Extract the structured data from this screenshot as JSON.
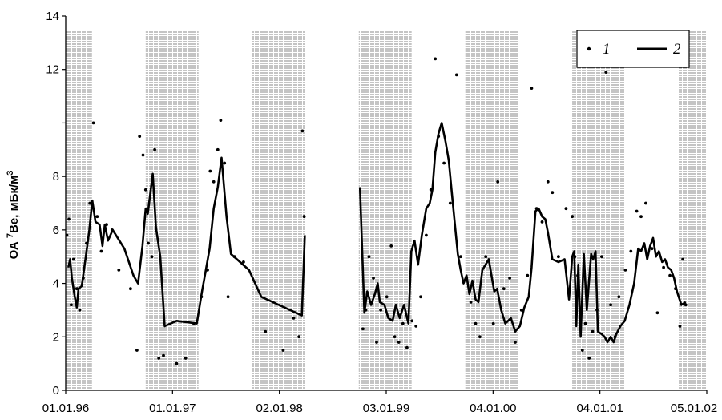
{
  "chart_data": {
    "type": "line",
    "title": "",
    "xlabel": "",
    "ylabel": "ОА ⁷Be, мБк/м³",
    "ylabel_parts": {
      "prefix": "ОА ",
      "superscript": "7",
      "suffix": "Be, мБк/м",
      "unit_power": "3"
    },
    "ylim": [
      0,
      14
    ],
    "y_ticks": [
      0,
      2,
      4,
      6,
      8,
      10,
      12,
      14
    ],
    "y_tick_labels": [
      "0",
      "2",
      "4",
      "6",
      "8",
      "",
      "12",
      "14"
    ],
    "x_ticks": [
      "01.01.96",
      "01.01.97",
      "02.01.98",
      "03.01.99",
      "04.01.00",
      "04.01.01",
      "05.01.02"
    ],
    "xlim": [
      "1996-01-01",
      "2002-01-05"
    ],
    "shaded_periods": [
      [
        "1996-01-01",
        "1996-03-31"
      ],
      [
        "1996-10-01",
        "1997-03-31"
      ],
      [
        "1997-10-01",
        "1998-03-31"
      ],
      [
        "1998-10-01",
        "1999-03-31"
      ],
      [
        "1999-10-01",
        "2000-03-31"
      ],
      [
        "2000-10-01",
        "2001-03-31"
      ],
      [
        "2001-10-01",
        "2002-01-05"
      ]
    ],
    "legend": {
      "position": "top-right",
      "entries": [
        {
          "label": "1",
          "marker": "dot"
        },
        {
          "label": "2",
          "marker": "line"
        }
      ]
    },
    "series": [
      {
        "name": "1",
        "kind": "scatter",
        "points": [
          [
            "1996-01-05",
            5.8
          ],
          [
            "1996-01-12",
            6.4
          ],
          [
            "1996-01-20",
            3.2
          ],
          [
            "1996-01-28",
            4.9
          ],
          [
            "1996-02-08",
            3.8
          ],
          [
            "1996-02-18",
            3.0
          ],
          [
            "1996-03-01",
            4.2
          ],
          [
            "1996-03-12",
            5.5
          ],
          [
            "1996-03-24",
            7.0
          ],
          [
            "1996-04-05",
            10.0
          ],
          [
            "1996-04-18",
            6.5
          ],
          [
            "1996-05-02",
            5.2
          ],
          [
            "1996-05-20",
            6.2
          ],
          [
            "1996-06-08",
            6.0
          ],
          [
            "1996-07-01",
            4.5
          ],
          [
            "1996-08-10",
            3.8
          ],
          [
            "1996-09-01",
            1.5
          ],
          [
            "1996-09-10",
            9.5
          ],
          [
            "1996-09-22",
            8.8
          ],
          [
            "1996-10-01",
            7.5
          ],
          [
            "1996-10-10",
            5.5
          ],
          [
            "1996-10-22",
            5.0
          ],
          [
            "1996-11-01",
            9.0
          ],
          [
            "1996-11-15",
            1.2
          ],
          [
            "1996-12-01",
            1.3
          ],
          [
            "1997-01-15",
            1.0
          ],
          [
            "1997-02-15",
            1.2
          ],
          [
            "1997-03-15",
            2.5
          ],
          [
            "1997-04-10",
            3.5
          ],
          [
            "1997-05-01",
            4.5
          ],
          [
            "1997-05-10",
            8.2
          ],
          [
            "1997-05-22",
            7.8
          ],
          [
            "1997-06-05",
            9.0
          ],
          [
            "1997-06-15",
            10.1
          ],
          [
            "1997-06-28",
            8.5
          ],
          [
            "1997-07-10",
            3.5
          ],
          [
            "1997-08-01",
            5.0
          ],
          [
            "1997-09-01",
            4.8
          ],
          [
            "1997-11-15",
            2.2
          ],
          [
            "1998-01-15",
            1.5
          ],
          [
            "1998-02-20",
            2.7
          ],
          [
            "1998-03-10",
            2.0
          ],
          [
            "1998-03-22",
            9.7
          ],
          [
            "1998-03-28",
            6.5
          ],
          [
            "1998-10-15",
            2.3
          ],
          [
            "1998-10-25",
            3.0
          ],
          [
            "1998-11-05",
            5.0
          ],
          [
            "1998-11-20",
            4.2
          ],
          [
            "1998-12-01",
            1.8
          ],
          [
            "1998-12-15",
            3.0
          ],
          [
            "1999-01-05",
            3.5
          ],
          [
            "1999-01-20",
            5.4
          ],
          [
            "1999-02-01",
            2.0
          ],
          [
            "1999-02-15",
            1.8
          ],
          [
            "1999-03-01",
            2.5
          ],
          [
            "1999-03-15",
            1.6
          ],
          [
            "1999-04-01",
            2.6
          ],
          [
            "1999-04-15",
            2.4
          ],
          [
            "1999-05-01",
            3.5
          ],
          [
            "1999-05-20",
            5.8
          ],
          [
            "1999-06-05",
            7.5
          ],
          [
            "1999-06-20",
            12.4
          ],
          [
            "1999-07-01",
            9.5
          ],
          [
            "1999-07-20",
            8.5
          ],
          [
            "1999-08-10",
            7.0
          ],
          [
            "1999-09-01",
            11.8
          ],
          [
            "1999-09-15",
            5.0
          ],
          [
            "1999-10-05",
            4.2
          ],
          [
            "1999-10-20",
            3.3
          ],
          [
            "1999-11-05",
            2.5
          ],
          [
            "1999-11-20",
            2.0
          ],
          [
            "1999-12-10",
            5.0
          ],
          [
            "2000-01-05",
            2.5
          ],
          [
            "2000-01-20",
            7.8
          ],
          [
            "2000-02-10",
            3.8
          ],
          [
            "2000-03-01",
            4.2
          ],
          [
            "2000-03-20",
            1.8
          ],
          [
            "2000-04-10",
            3.0
          ],
          [
            "2000-05-01",
            4.3
          ],
          [
            "2000-05-15",
            11.3
          ],
          [
            "2000-06-01",
            6.8
          ],
          [
            "2000-06-20",
            6.3
          ],
          [
            "2000-07-10",
            7.8
          ],
          [
            "2000-07-25",
            7.4
          ],
          [
            "2000-08-15",
            5.0
          ],
          [
            "2000-09-10",
            6.8
          ],
          [
            "2000-10-01",
            6.5
          ],
          [
            "2000-10-10",
            5.0
          ],
          [
            "2000-10-20",
            4.3
          ],
          [
            "2000-11-05",
            1.5
          ],
          [
            "2000-11-15",
            2.5
          ],
          [
            "2000-11-28",
            1.2
          ],
          [
            "2000-12-10",
            2.2
          ],
          [
            "2000-12-25",
            3.0
          ],
          [
            "2001-01-10",
            5.0
          ],
          [
            "2001-01-25",
            11.9
          ],
          [
            "2001-02-10",
            3.2
          ],
          [
            "2001-02-25",
            2.0
          ],
          [
            "2001-03-10",
            3.5
          ],
          [
            "2001-04-01",
            4.5
          ],
          [
            "2001-04-20",
            5.2
          ],
          [
            "2001-05-10",
            6.7
          ],
          [
            "2001-05-25",
            6.5
          ],
          [
            "2001-06-10",
            7.0
          ],
          [
            "2001-07-01",
            5.3
          ],
          [
            "2001-07-20",
            2.9
          ],
          [
            "2001-08-10",
            4.6
          ],
          [
            "2001-09-01",
            4.3
          ],
          [
            "2001-09-20",
            3.8
          ],
          [
            "2001-10-05",
            2.4
          ],
          [
            "2001-10-15",
            4.9
          ],
          [
            "2001-10-25",
            3.2
          ]
        ]
      },
      {
        "name": "2",
        "kind": "line",
        "segments": [
          [
            [
              "1996-01-10",
              4.6
            ],
            [
              "1996-01-16",
              4.9
            ],
            [
              "1996-01-22",
              4.2
            ],
            [
              "1996-02-01",
              3.5
            ],
            [
              "1996-02-08",
              3.1
            ],
            [
              "1996-02-14",
              3.8
            ],
            [
              "1996-02-25",
              3.9
            ],
            [
              "1996-03-10",
              5.0
            ],
            [
              "1996-03-22",
              6.0
            ],
            [
              "1996-04-01",
              7.1
            ],
            [
              "1996-04-12",
              6.3
            ],
            [
              "1996-04-26",
              6.2
            ],
            [
              "1996-05-06",
              5.4
            ],
            [
              "1996-05-14",
              6.2
            ],
            [
              "1996-05-25",
              5.6
            ],
            [
              "1996-06-10",
              6.0
            ],
            [
              "1996-07-20",
              5.3
            ],
            [
              "1996-08-20",
              4.3
            ],
            [
              "1996-09-05",
              4.0
            ],
            [
              "1996-09-20",
              5.4
            ],
            [
              "1996-10-01",
              6.8
            ],
            [
              "1996-10-08",
              6.6
            ],
            [
              "1996-10-16",
              7.3
            ],
            [
              "1996-10-25",
              8.1
            ],
            [
              "1996-11-05",
              6.1
            ],
            [
              "1996-11-20",
              5.0
            ],
            [
              "1996-12-05",
              2.4
            ],
            [
              "1997-01-15",
              2.6
            ],
            [
              "1997-03-25",
              2.5
            ],
            [
              "1997-04-12",
              3.7
            ],
            [
              "1997-04-25",
              4.5
            ],
            [
              "1997-05-08",
              5.3
            ],
            [
              "1997-05-22",
              6.8
            ],
            [
              "1997-06-05",
              7.6
            ],
            [
              "1997-06-18",
              8.7
            ],
            [
              "1997-07-05",
              6.5
            ],
            [
              "1997-07-20",
              5.1
            ],
            [
              "1997-09-20",
              4.5
            ],
            [
              "1997-11-01",
              3.5
            ],
            [
              "1998-03-20",
              2.8
            ],
            [
              "1998-03-30",
              5.8
            ]
          ],
          [
            [
              "1998-10-05",
              7.6
            ],
            [
              "1998-10-20",
              2.9
            ],
            [
              "1998-10-30",
              3.7
            ],
            [
              "1998-11-12",
              3.2
            ],
            [
              "1998-11-25",
              3.6
            ],
            [
              "1998-12-05",
              4.0
            ],
            [
              "1998-12-12",
              3.3
            ],
            [
              "1998-12-28",
              3.2
            ],
            [
              "1999-01-10",
              2.7
            ],
            [
              "1999-01-25",
              2.6
            ],
            [
              "1999-02-05",
              3.2
            ],
            [
              "1999-02-18",
              2.7
            ],
            [
              "1999-03-05",
              3.2
            ],
            [
              "1999-03-20",
              2.5
            ],
            [
              "1999-03-30",
              5.2
            ],
            [
              "1999-04-10",
              5.6
            ],
            [
              "1999-04-22",
              4.7
            ],
            [
              "1999-05-05",
              5.8
            ],
            [
              "1999-05-20",
              6.8
            ],
            [
              "1999-06-01",
              7.0
            ],
            [
              "1999-06-10",
              7.5
            ],
            [
              "1999-06-20",
              8.9
            ],
            [
              "1999-07-01",
              9.6
            ],
            [
              "1999-07-12",
              10.0
            ],
            [
              "1999-07-25",
              9.3
            ],
            [
              "1999-08-05",
              8.6
            ],
            [
              "1999-08-20",
              6.9
            ],
            [
              "1999-09-05",
              5.1
            ],
            [
              "1999-09-15",
              4.5
            ],
            [
              "1999-09-25",
              4.0
            ],
            [
              "1999-10-05",
              4.3
            ],
            [
              "1999-10-15",
              3.6
            ],
            [
              "1999-10-25",
              4.1
            ],
            [
              "1999-11-05",
              3.4
            ],
            [
              "1999-11-15",
              3.3
            ],
            [
              "1999-11-28",
              4.5
            ],
            [
              "1999-12-20",
              4.9
            ],
            [
              "2000-01-08",
              3.7
            ],
            [
              "2000-01-18",
              3.8
            ],
            [
              "2000-02-01",
              3.0
            ],
            [
              "2000-02-15",
              2.5
            ],
            [
              "2000-03-05",
              2.7
            ],
            [
              "2000-03-20",
              2.2
            ],
            [
              "2000-04-05",
              2.4
            ],
            [
              "2000-04-20",
              3.1
            ],
            [
              "2000-05-05",
              3.5
            ],
            [
              "2000-05-15",
              4.6
            ],
            [
              "2000-05-28",
              6.7
            ],
            [
              "2000-06-08",
              6.8
            ],
            [
              "2000-06-20",
              6.5
            ],
            [
              "2000-07-01",
              6.4
            ],
            [
              "2000-07-10",
              5.9
            ],
            [
              "2000-07-25",
              4.9
            ],
            [
              "2000-08-15",
              4.8
            ],
            [
              "2000-09-05",
              4.9
            ],
            [
              "2000-09-20",
              3.4
            ],
            [
              "2000-10-01",
              5.0
            ],
            [
              "2000-10-08",
              5.2
            ],
            [
              "2000-10-15",
              2.4
            ],
            [
              "2000-10-22",
              4.7
            ],
            [
              "2000-10-30",
              2.0
            ],
            [
              "2000-11-10",
              5.1
            ],
            [
              "2000-11-20",
              3.0
            ],
            [
              "2000-12-05",
              5.1
            ],
            [
              "2000-12-12",
              4.9
            ],
            [
              "2000-12-20",
              5.2
            ],
            [
              "2000-12-28",
              2.2
            ],
            [
              "2001-01-10",
              2.1
            ],
            [
              "2001-01-20",
              2.0
            ],
            [
              "2001-01-30",
              1.8
            ],
            [
              "2001-02-10",
              2.0
            ],
            [
              "2001-02-20",
              1.8
            ],
            [
              "2001-03-01",
              2.1
            ],
            [
              "2001-03-15",
              2.4
            ],
            [
              "2001-03-30",
              2.6
            ],
            [
              "2001-04-15",
              3.2
            ],
            [
              "2001-05-01",
              4.0
            ],
            [
              "2001-05-15",
              5.3
            ],
            [
              "2001-05-25",
              5.2
            ],
            [
              "2001-06-05",
              5.5
            ],
            [
              "2001-06-15",
              4.9
            ],
            [
              "2001-06-25",
              5.4
            ],
            [
              "2001-07-05",
              5.7
            ],
            [
              "2001-07-15",
              5.0
            ],
            [
              "2001-07-25",
              5.2
            ],
            [
              "2001-08-05",
              4.8
            ],
            [
              "2001-08-15",
              4.9
            ],
            [
              "2001-08-25",
              4.6
            ],
            [
              "2001-09-05",
              4.5
            ],
            [
              "2001-09-15",
              4.2
            ],
            [
              "2001-09-25",
              3.7
            ],
            [
              "2001-10-10",
              3.2
            ],
            [
              "2001-10-25",
              3.3
            ]
          ]
        ]
      }
    ]
  }
}
